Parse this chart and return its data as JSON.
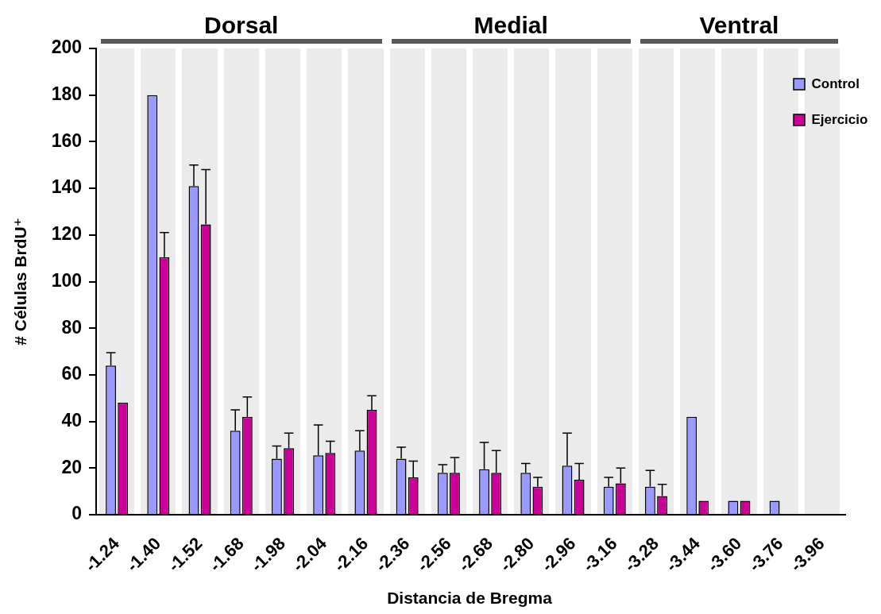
{
  "chart_data": {
    "type": "bar",
    "xlabel": "Distancia de Bregma",
    "ylabel": "# Células BrdU⁺",
    "categories": [
      "-1.24",
      "-1.40",
      "-1.52",
      "-1.68",
      "-1.98",
      "-2.04",
      "-2.16",
      "-2.36",
      "-2.56",
      "-2.68",
      "-2.80",
      "-2.96",
      "-3.16",
      "-3.28",
      "-3.44",
      "-3.60",
      "-3.76",
      "-3.96"
    ],
    "series": [
      {
        "name": "Control",
        "color": "#9999ff",
        "values": [
          64,
          180,
          141,
          36,
          24,
          25.5,
          27.5,
          24,
          18,
          19.5,
          18,
          21,
          12,
          12,
          42,
          6,
          6,
          null
        ],
        "errors": [
          [
            64,
            69.5
          ],
          null,
          [
            141,
            150
          ],
          [
            36,
            45
          ],
          [
            24,
            29.5
          ],
          [
            25.5,
            38.5
          ],
          [
            27.5,
            36
          ],
          [
            24,
            29
          ],
          [
            18,
            21.5
          ],
          [
            19.5,
            31
          ],
          [
            18,
            22
          ],
          [
            21,
            35
          ],
          [
            12,
            16
          ],
          [
            12,
            19
          ],
          null,
          null,
          null,
          null
        ]
      },
      {
        "name": "Ejercicio",
        "color": "#cc0099",
        "values": [
          48,
          110.5,
          124.5,
          42,
          28.5,
          26.5,
          45,
          16,
          18,
          18,
          12,
          15,
          13.5,
          8,
          6,
          6,
          null,
          null
        ],
        "errors": [
          null,
          [
            110.5,
            121
          ],
          [
            124.5,
            148
          ],
          [
            42,
            50.5
          ],
          [
            28.5,
            35
          ],
          [
            26.5,
            31.5
          ],
          [
            45,
            51
          ],
          [
            16,
            23
          ],
          [
            18,
            24.5
          ],
          [
            18,
            27.5
          ],
          [
            12,
            16
          ],
          [
            15,
            22
          ],
          [
            13.5,
            20
          ],
          [
            8,
            13
          ],
          null,
          null,
          null,
          null
        ]
      }
    ],
    "ylim": [
      0,
      200
    ],
    "yticks": [
      0,
      20,
      40,
      60,
      80,
      100,
      120,
      140,
      160,
      180,
      200
    ],
    "grid": "x",
    "legend": "top right",
    "annotations": [
      "Dorsal",
      "Medial",
      "Ventral"
    ]
  }
}
